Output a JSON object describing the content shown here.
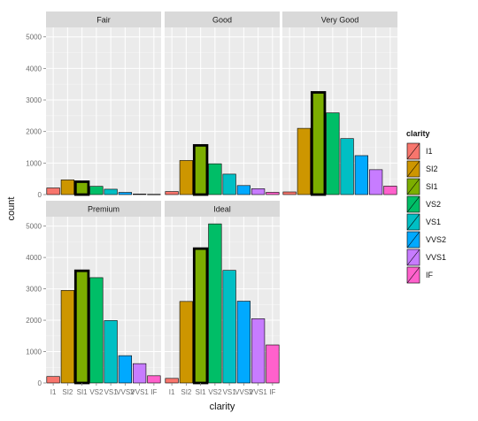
{
  "chart_data": {
    "type": "bar",
    "xlabel": "clarity",
    "ylabel": "count",
    "ylim": [
      0,
      5300
    ],
    "yticks": [
      0,
      1000,
      2000,
      3000,
      4000,
      5000
    ],
    "grid": true,
    "categories": [
      "I1",
      "SI2",
      "SI1",
      "VS2",
      "VS1",
      "VVS2",
      "VVS1",
      "IF"
    ],
    "category_colors": [
      "#F8766D",
      "#CD9600",
      "#7CAE00",
      "#00BE67",
      "#00BFC4",
      "#00A9FF",
      "#C77CFF",
      "#FF61CC"
    ],
    "highlighted_category": "SI1",
    "legend": {
      "title": "clarity",
      "position": "right"
    },
    "facets": [
      {
        "name": "Fair",
        "values": [
          210,
          466,
          408,
          261,
          170,
          69,
          17,
          9
        ]
      },
      {
        "name": "Good",
        "values": [
          96,
          1081,
          1560,
          978,
          648,
          286,
          186,
          71
        ]
      },
      {
        "name": "Very Good",
        "values": [
          84,
          2100,
          3240,
          2591,
          1775,
          1235,
          789,
          268
        ]
      },
      {
        "name": "Premium",
        "values": [
          205,
          2949,
          3575,
          3357,
          1989,
          870,
          616,
          230
        ]
      },
      {
        "name": "Ideal",
        "values": [
          146,
          2598,
          4282,
          5071,
          3589,
          2606,
          2047,
          1212
        ]
      }
    ]
  }
}
